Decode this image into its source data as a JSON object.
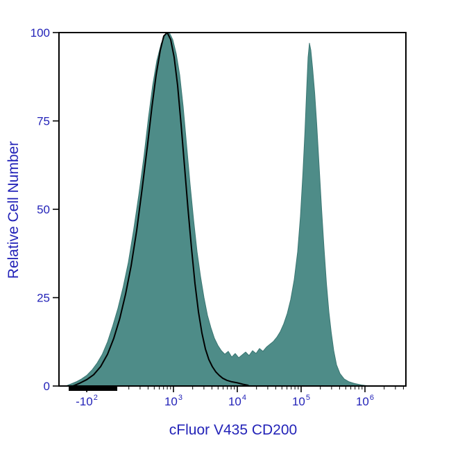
{
  "chart_data": {
    "type": "area",
    "title": "",
    "xlabel": "cFluor V435 CD200",
    "ylabel": "Relative Cell Number",
    "x_scale": "biexponential",
    "ylim": [
      0,
      100
    ],
    "y_ticks": [
      0,
      25,
      50,
      75,
      100
    ],
    "x_ticks": [
      {
        "base": "-10",
        "exp": "2",
        "frac": 0.08
      },
      {
        "base": "10",
        "exp": "3",
        "frac": 0.33
      },
      {
        "base": "10",
        "exp": "4",
        "frac": 0.514
      },
      {
        "base": "10",
        "exp": "5",
        "frac": 0.698
      },
      {
        "base": "10",
        "exp": "6",
        "frac": 0.882
      }
    ],
    "decade_frac": 0.184,
    "minor_tick_bases": [
      0.146,
      0.33,
      0.514,
      0.698,
      0.882
    ],
    "neg_region_bar": {
      "start_frac": 0.028,
      "end_frac": 0.168
    },
    "colors": {
      "axis": "#000000",
      "label": "#2323b8",
      "fill": "#4e8c88",
      "fill_edge": "#3a7672",
      "outline": "#000000",
      "background": "#ffffff"
    },
    "series": [
      {
        "name": "filled-histogram",
        "style": "filled",
        "peak_summary": [
          {
            "peak_frac": 0.318,
            "peak_y": 100
          },
          {
            "peak_frac": 0.722,
            "peak_y": 97
          }
        ],
        "points": [
          [
            0.02,
            0
          ],
          [
            0.035,
            0.6
          ],
          [
            0.05,
            1.2
          ],
          [
            0.065,
            2
          ],
          [
            0.08,
            3
          ],
          [
            0.095,
            4.5
          ],
          [
            0.11,
            6.5
          ],
          [
            0.125,
            9
          ],
          [
            0.14,
            12.5
          ],
          [
            0.155,
            17
          ],
          [
            0.17,
            22
          ],
          [
            0.185,
            28
          ],
          [
            0.2,
            35
          ],
          [
            0.215,
            44
          ],
          [
            0.23,
            54
          ],
          [
            0.245,
            65
          ],
          [
            0.258,
            76
          ],
          [
            0.27,
            85
          ],
          [
            0.282,
            92
          ],
          [
            0.295,
            97
          ],
          [
            0.308,
            99.5
          ],
          [
            0.318,
            100
          ],
          [
            0.328,
            98
          ],
          [
            0.338,
            94
          ],
          [
            0.348,
            88
          ],
          [
            0.358,
            79
          ],
          [
            0.368,
            68
          ],
          [
            0.378,
            57
          ],
          [
            0.388,
            47
          ],
          [
            0.398,
            38
          ],
          [
            0.408,
            31
          ],
          [
            0.418,
            25
          ],
          [
            0.428,
            20
          ],
          [
            0.438,
            16.5
          ],
          [
            0.448,
            13.5
          ],
          [
            0.458,
            11.5
          ],
          [
            0.468,
            10
          ],
          [
            0.478,
            9
          ],
          [
            0.488,
            9.8
          ],
          [
            0.498,
            8.2
          ],
          [
            0.508,
            9.2
          ],
          [
            0.518,
            8
          ],
          [
            0.528,
            8.8
          ],
          [
            0.538,
            9.6
          ],
          [
            0.548,
            8.6
          ],
          [
            0.558,
            10
          ],
          [
            0.568,
            9.2
          ],
          [
            0.578,
            10.6
          ],
          [
            0.588,
            9.8
          ],
          [
            0.598,
            11
          ],
          [
            0.608,
            11.8
          ],
          [
            0.618,
            12.6
          ],
          [
            0.628,
            13.8
          ],
          [
            0.638,
            15.4
          ],
          [
            0.648,
            17.6
          ],
          [
            0.658,
            20.5
          ],
          [
            0.668,
            24.5
          ],
          [
            0.678,
            30
          ],
          [
            0.688,
            38
          ],
          [
            0.696,
            48
          ],
          [
            0.703,
            60
          ],
          [
            0.709,
            72
          ],
          [
            0.714,
            84
          ],
          [
            0.718,
            93
          ],
          [
            0.722,
            97
          ],
          [
            0.726,
            95
          ],
          [
            0.731,
            90
          ],
          [
            0.737,
            83
          ],
          [
            0.743,
            74
          ],
          [
            0.75,
            62
          ],
          [
            0.757,
            50
          ],
          [
            0.764,
            39
          ],
          [
            0.771,
            29
          ],
          [
            0.778,
            21
          ],
          [
            0.785,
            15
          ],
          [
            0.792,
            10
          ],
          [
            0.8,
            6
          ],
          [
            0.81,
            3.5
          ],
          [
            0.822,
            2
          ],
          [
            0.836,
            1.2
          ],
          [
            0.852,
            0.7
          ],
          [
            0.872,
            0.3
          ],
          [
            0.895,
            0
          ]
        ]
      },
      {
        "name": "open-histogram",
        "style": "line",
        "peak_summary": [
          {
            "peak_frac": 0.312,
            "peak_y": 100
          }
        ],
        "points": [
          [
            0.04,
            0
          ],
          [
            0.06,
            0.8
          ],
          [
            0.08,
            1.8
          ],
          [
            0.1,
            3.2
          ],
          [
            0.12,
            5.5
          ],
          [
            0.14,
            9
          ],
          [
            0.158,
            13.5
          ],
          [
            0.175,
            19
          ],
          [
            0.192,
            26
          ],
          [
            0.208,
            34
          ],
          [
            0.224,
            44
          ],
          [
            0.24,
            56
          ],
          [
            0.255,
            68
          ],
          [
            0.268,
            79
          ],
          [
            0.28,
            88
          ],
          [
            0.292,
            95
          ],
          [
            0.302,
            99
          ],
          [
            0.312,
            100
          ],
          [
            0.322,
            98
          ],
          [
            0.332,
            93
          ],
          [
            0.342,
            85
          ],
          [
            0.352,
            74
          ],
          [
            0.362,
            62
          ],
          [
            0.372,
            50
          ],
          [
            0.382,
            39
          ],
          [
            0.392,
            29
          ],
          [
            0.402,
            21
          ],
          [
            0.412,
            15
          ],
          [
            0.422,
            10.5
          ],
          [
            0.432,
            7.5
          ],
          [
            0.442,
            5.5
          ],
          [
            0.452,
            4
          ],
          [
            0.462,
            3
          ],
          [
            0.472,
            2.2
          ],
          [
            0.484,
            1.6
          ],
          [
            0.498,
            1.2
          ],
          [
            0.514,
            0.9
          ],
          [
            0.53,
            0.5
          ],
          [
            0.545,
            0.2
          ]
        ]
      }
    ]
  }
}
